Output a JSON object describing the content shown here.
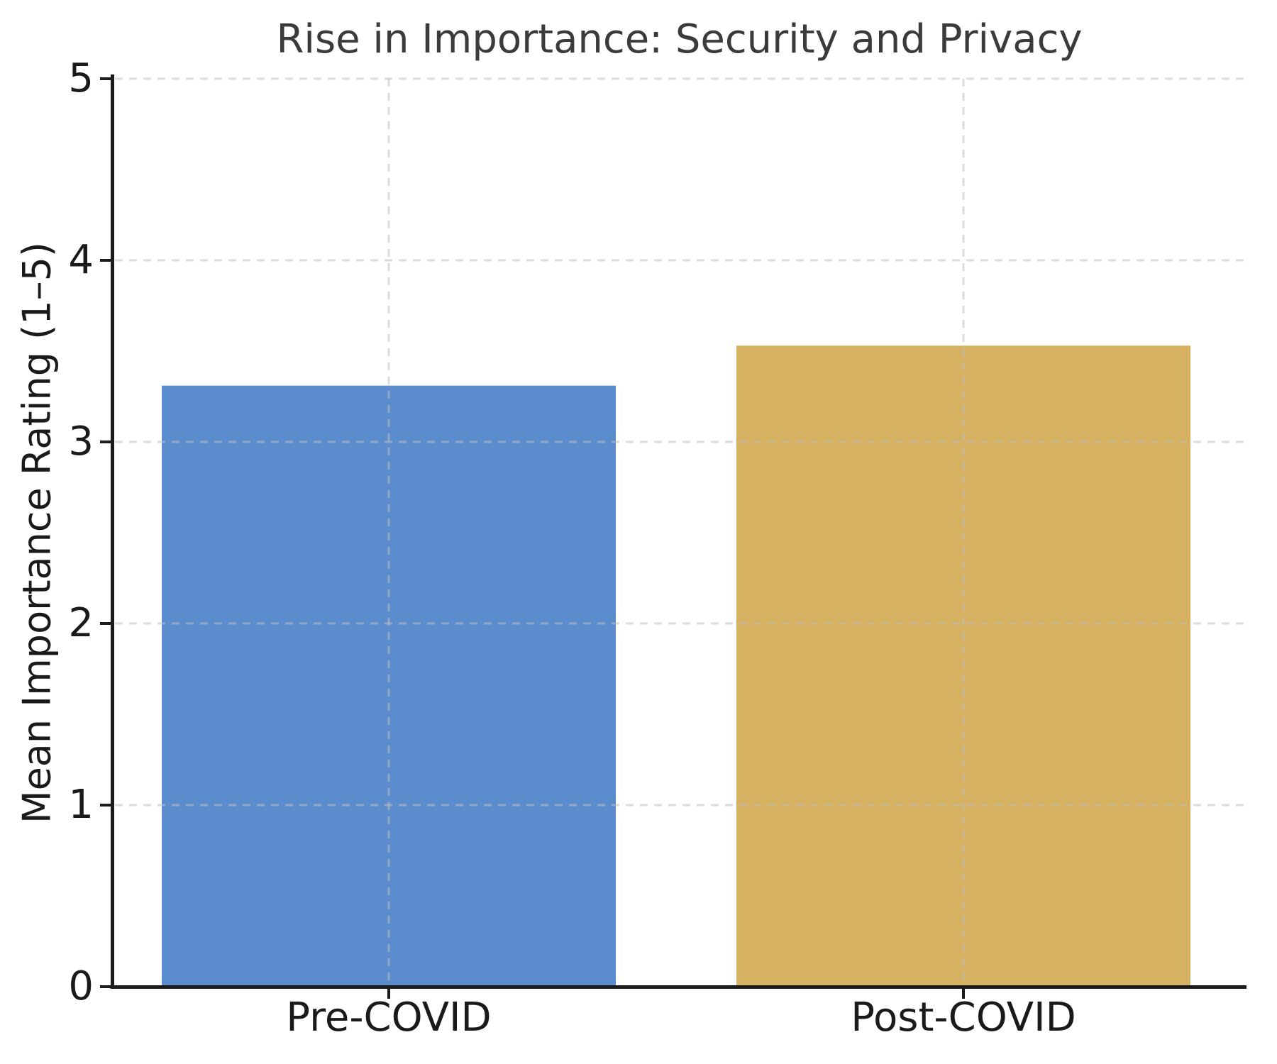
{
  "figure": {
    "background_color": "#ffffff"
  },
  "chart_data": {
    "type": "bar",
    "title": "Rise in Importance: Security and Privacy",
    "categories": [
      "Pre-COVID",
      "Post-COVID"
    ],
    "values": [
      3.31,
      3.53
    ],
    "bar_colors": [
      "#5B8CCE",
      "#D5B161"
    ],
    "xlabel": "",
    "ylabel": "Mean Importance Rating (1–5)",
    "ylim": [
      0,
      5
    ],
    "yticks": [
      0,
      1,
      2,
      3,
      4,
      5
    ],
    "legend": "none",
    "grid": {
      "style": "dashed",
      "horizontal_at": [
        1,
        2,
        3,
        4,
        5
      ],
      "vertical_at_category_centers": true,
      "drawn_above_bars": true
    },
    "colors": {
      "grid": "#c6c6c6",
      "spine": "#1c1c1c",
      "tick": "#1c1c1c",
      "tick_label": "#1a1a1a",
      "title": "#3b3b3b"
    }
  }
}
